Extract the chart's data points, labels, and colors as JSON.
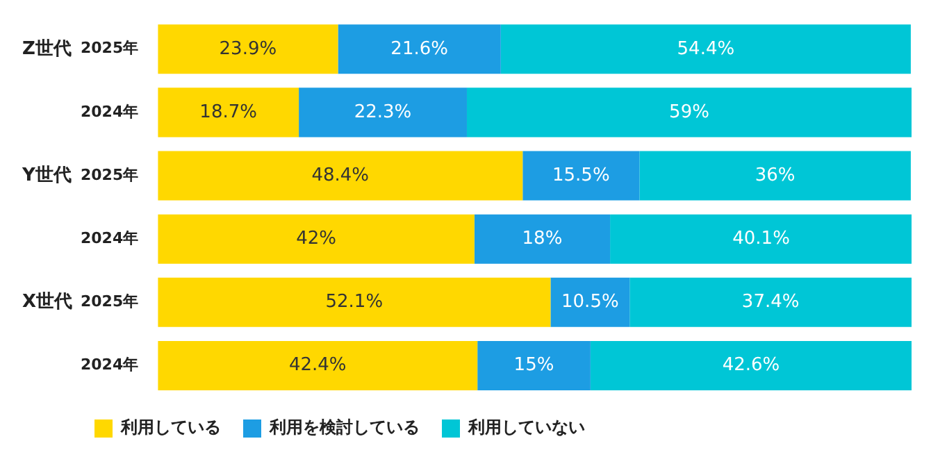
{
  "chart_data": {
    "type": "bar",
    "orientation": "horizontal",
    "stacked": true,
    "categories": [
      "2025年",
      "2024年",
      "2025年",
      "2024年",
      "2025年",
      "2024年"
    ],
    "annotations": [
      "Z世代",
      "Y世代",
      "X世代"
    ],
    "xlim": [
      0,
      100
    ],
    "tick_labels": "y",
    "grid": false,
    "legend": "bottom left",
    "series": [
      {
        "name": "利用している",
        "color": "#ffd800",
        "values": [
          23.9,
          18.7,
          48.4,
          42,
          52.1,
          42.4
        ],
        "value_labels": [
          "23.9%",
          "18.7%",
          "48.4%",
          "42%",
          "52.1%",
          "42.4%"
        ]
      },
      {
        "name": "利用を検討している",
        "color": "#1d9de3",
        "values": [
          21.6,
          22.3,
          15.5,
          18,
          10.5,
          15
        ],
        "value_labels": [
          "21.6%",
          "22.3%",
          "15.5%",
          "18%",
          "10.5%",
          "15%"
        ]
      },
      {
        "name": "利用していない",
        "color": "#00c6d6",
        "values": [
          54.4,
          59,
          36,
          40.1,
          37.4,
          42.6
        ],
        "value_labels": [
          "54.4%",
          "59%",
          "36%",
          "40.1%",
          "37.4%",
          "42.6%"
        ]
      }
    ]
  }
}
